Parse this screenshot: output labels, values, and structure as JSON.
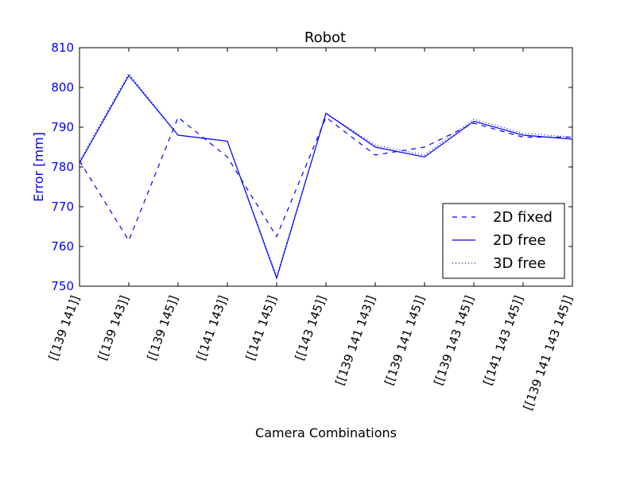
{
  "chart_data": {
    "type": "line",
    "title": "Robot",
    "xlabel": "Camera Combinations",
    "ylabel": "Error [mm]",
    "ylim": [
      750,
      810
    ],
    "yticks": [
      750,
      760,
      770,
      780,
      790,
      800,
      810
    ],
    "categories": [
      "[[139 141]]",
      "[[139 143]]",
      "[[139 145]]",
      "[[141 143]]",
      "[[141 145]]",
      "[[143 145]]",
      "[[139 141 143]]",
      "[[139 141 145]]",
      "[[139 143 145]]",
      "[[141 143 145]]",
      "[[139 141 143 145]]"
    ],
    "grid": false,
    "legend_position": "lower-right",
    "series": [
      {
        "name": "2D fixed",
        "style": "dashed",
        "color": "#0000ff",
        "values": [
          781.5,
          761.5,
          792.5,
          782.5,
          762.5,
          792.5,
          783.0,
          785.0,
          791.0,
          787.5,
          787.5
        ]
      },
      {
        "name": "2D free",
        "style": "solid",
        "color": "#0000ff",
        "values": [
          781.0,
          803.0,
          788.0,
          786.5,
          752.0,
          793.5,
          785.0,
          782.5,
          791.5,
          788.0,
          787.0
        ]
      },
      {
        "name": "3D free",
        "style": "dotted",
        "color": "#0000ff",
        "values": [
          781.5,
          803.5,
          788.0,
          786.5,
          752.5,
          793.5,
          785.5,
          783.0,
          792.0,
          788.5,
          787.5
        ]
      }
    ]
  }
}
